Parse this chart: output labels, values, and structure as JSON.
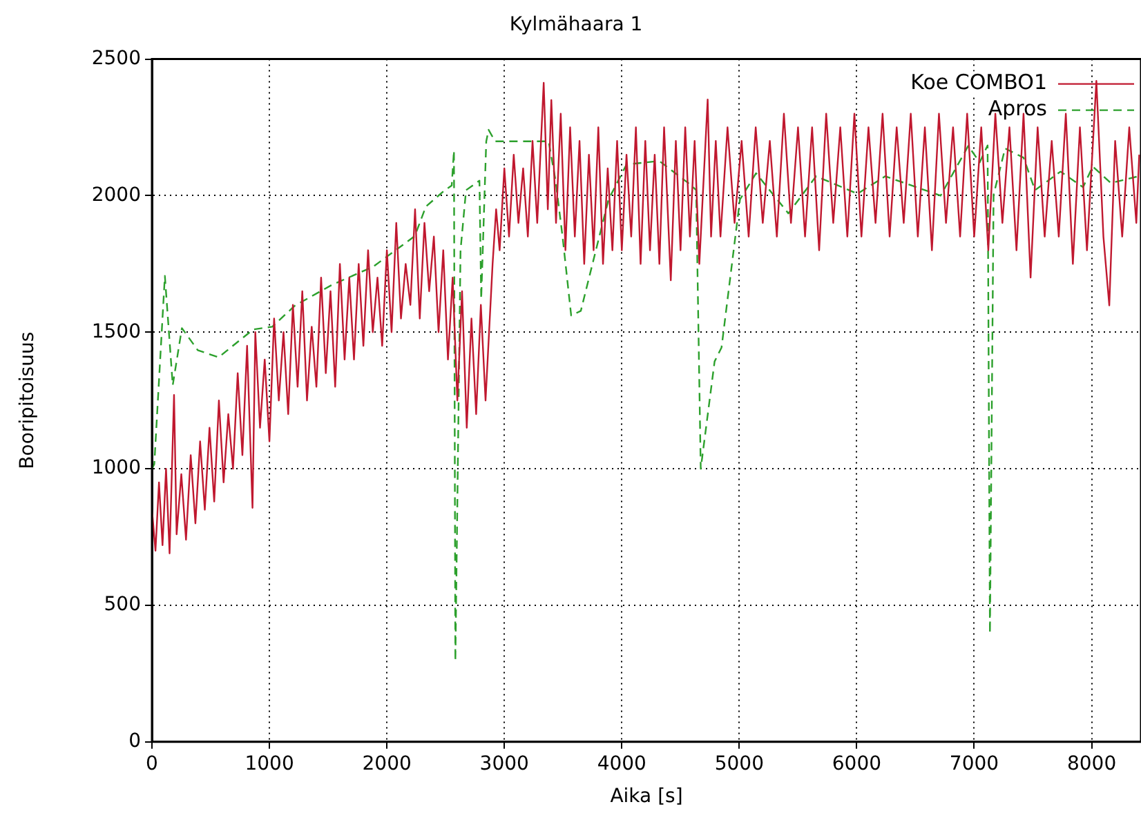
{
  "chart_data": {
    "type": "line",
    "title": "Kylmähaara 1",
    "xlabel": "Aika [s]",
    "ylabel": "Booripitoisuus",
    "xlim": [
      0,
      8420
    ],
    "xticks": [
      0,
      1000,
      2000,
      3000,
      4000,
      5000,
      6000,
      7000,
      8000
    ],
    "ylim": [
      0,
      2500
    ],
    "yticks": [
      0,
      500,
      1000,
      1500,
      2000,
      2500
    ],
    "grid": true,
    "legend": "top right",
    "marker": "none",
    "series": [
      {
        "name": "Koe COMBO1",
        "color": "#c0182f",
        "line_style": "solid",
        "x": [
          0,
          30,
          60,
          90,
          120,
          150,
          188,
          210,
          250,
          290,
          330,
          370,
          410,
          450,
          490,
          530,
          570,
          610,
          650,
          690,
          730,
          770,
          810,
          856,
          880,
          920,
          960,
          1000,
          1040,
          1080,
          1120,
          1160,
          1200,
          1240,
          1280,
          1320,
          1360,
          1400,
          1440,
          1480,
          1520,
          1560,
          1600,
          1640,
          1680,
          1720,
          1760,
          1800,
          1840,
          1880,
          1920,
          1960,
          2000,
          2040,
          2080,
          2120,
          2160,
          2200,
          2240,
          2280,
          2320,
          2360,
          2400,
          2440,
          2480,
          2520,
          2560,
          2600,
          2640,
          2680,
          2720,
          2760,
          2800,
          2840,
          2870,
          2900,
          2930,
          2960,
          3000,
          3040,
          3080,
          3120,
          3160,
          3200,
          3240,
          3280,
          3335,
          3370,
          3400,
          3440,
          3480,
          3520,
          3560,
          3600,
          3640,
          3680,
          3720,
          3760,
          3800,
          3840,
          3880,
          3920,
          3960,
          4000,
          4040,
          4080,
          4120,
          4160,
          4200,
          4240,
          4280,
          4320,
          4360,
          4417,
          4460,
          4500,
          4540,
          4580,
          4620,
          4660,
          4731,
          4760,
          4800,
          4840,
          4900,
          4960,
          5020,
          5080,
          5140,
          5200,
          5260,
          5320,
          5380,
          5440,
          5500,
          5560,
          5620,
          5680,
          5740,
          5800,
          5860,
          5920,
          5980,
          6040,
          6100,
          6160,
          6220,
          6280,
          6340,
          6400,
          6460,
          6520,
          6580,
          6640,
          6700,
          6760,
          6820,
          6880,
          6940,
          7000,
          7060,
          7120,
          7180,
          7240,
          7300,
          7360,
          7420,
          7480,
          7540,
          7600,
          7660,
          7720,
          7780,
          7840,
          7900,
          7960,
          8040,
          8100,
          8150,
          8200,
          8260,
          8320,
          8380,
          8405
        ],
        "values": [
          850,
          700,
          950,
          720,
          1000,
          690,
          1270,
          760,
          980,
          740,
          1050,
          800,
          1100,
          850,
          1150,
          880,
          1250,
          950,
          1200,
          1000,
          1350,
          1050,
          1450,
          857,
          1500,
          1150,
          1400,
          1100,
          1550,
          1250,
          1500,
          1200,
          1600,
          1300,
          1650,
          1250,
          1520,
          1300,
          1700,
          1350,
          1650,
          1300,
          1750,
          1400,
          1700,
          1400,
          1750,
          1450,
          1800,
          1500,
          1700,
          1450,
          1800,
          1500,
          1900,
          1550,
          1750,
          1600,
          1950,
          1550,
          1900,
          1650,
          1850,
          1500,
          1800,
          1400,
          1700,
          1250,
          1650,
          1150,
          1550,
          1200,
          1600,
          1250,
          1500,
          1750,
          1950,
          1800,
          2100,
          1850,
          2150,
          1900,
          2100,
          1850,
          2200,
          1900,
          2413,
          1950,
          2350,
          1900,
          2300,
          1800,
          2250,
          1850,
          2200,
          1750,
          2150,
          1800,
          2250,
          1750,
          2100,
          1800,
          2200,
          1800,
          2150,
          1850,
          2250,
          1750,
          2200,
          1800,
          2150,
          1750,
          2250,
          1690,
          2200,
          1800,
          2250,
          1850,
          2200,
          1750,
          2352,
          1850,
          2200,
          1850,
          2250,
          1900,
          2200,
          1850,
          2250,
          1900,
          2200,
          1850,
          2300,
          1900,
          2250,
          1850,
          2250,
          1800,
          2300,
          1900,
          2250,
          1850,
          2300,
          1850,
          2250,
          1900,
          2300,
          1850,
          2250,
          1900,
          2300,
          1850,
          2250,
          1800,
          2300,
          1900,
          2250,
          1850,
          2300,
          1850,
          2250,
          1800,
          2300,
          1900,
          2250,
          1800,
          2300,
          1700,
          2250,
          1850,
          2200,
          1850,
          2300,
          1750,
          2250,
          1800,
          2420,
          1850,
          1598,
          2200,
          1850,
          2250,
          1900,
          2150
        ]
      },
      {
        "name": "Apros",
        "color": "#2ca02c",
        "line_style": "dashed",
        "x": [
          0,
          20,
          110,
          177,
          255,
          390,
          567,
          862,
          1024,
          1216,
          1531,
          1884,
          2238,
          2332,
          2493,
          2552,
          2571,
          2583,
          2627,
          2674,
          2788,
          2803,
          2846,
          2866,
          2921,
          3377,
          3436,
          3495,
          3569,
          3651,
          3887,
          4040,
          4319,
          4594,
          4633,
          4672,
          4790,
          4849,
          5006,
          5143,
          5418,
          5654,
          6007,
          6243,
          6714,
          6949,
          7047,
          7114,
          7134,
          7165,
          7263,
          7420,
          7518,
          7735,
          7927,
          8009,
          8163,
          8398
        ],
        "values": [
          1000,
          1017,
          1706,
          1306,
          1515,
          1434,
          1408,
          1510,
          1520,
          1597,
          1673,
          1740,
          1852,
          1960,
          2020,
          2037,
          2165,
          296,
          1800,
          2020,
          2055,
          1622,
          2199,
          2241,
          2199,
          2199,
          2055,
          1852,
          1561,
          1578,
          1986,
          2114,
          2127,
          2037,
          2020,
          1000,
          1393,
          1444,
          1986,
          2082,
          1935,
          2071,
          2007,
          2071,
          2000,
          2182,
          2122,
          2184,
          397,
          2003,
          2173,
          2139,
          2020,
          2088,
          2031,
          2107,
          2046,
          2071
        ]
      }
    ]
  }
}
